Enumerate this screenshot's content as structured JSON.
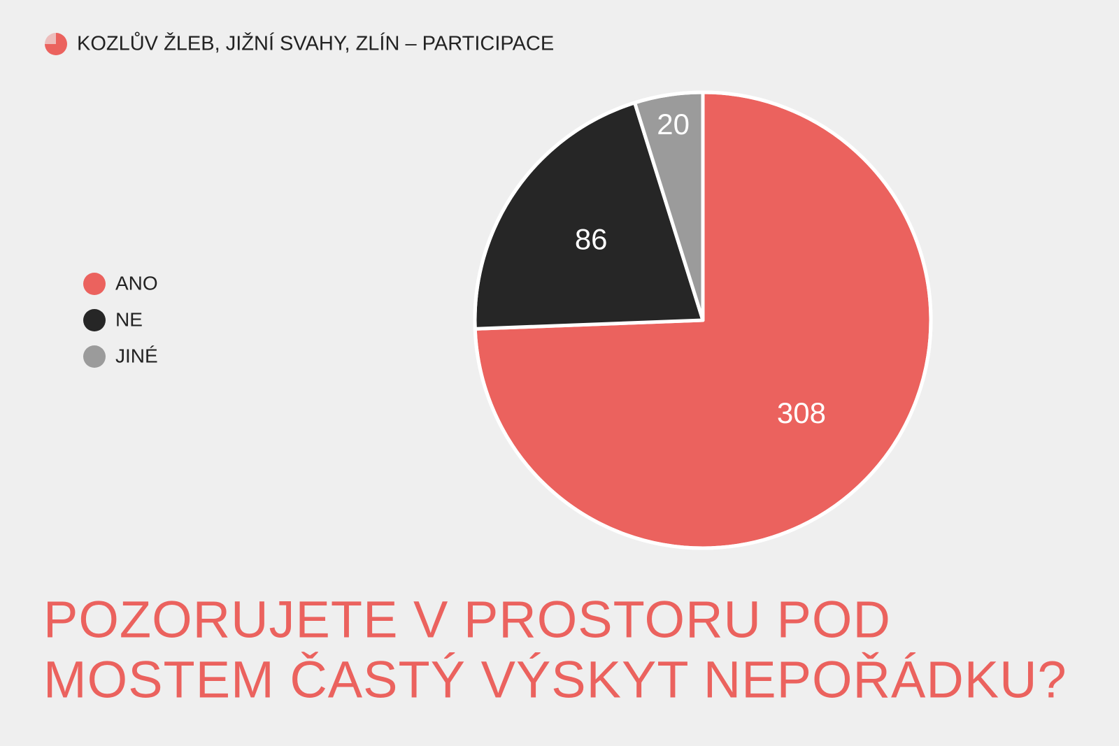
{
  "chart_data": {
    "type": "pie",
    "header": "KOZLŮV ŽLEB, JIŽNÍ SVAHY, ZLÍN – PARTICIPACE",
    "title": [
      "POZORUJETE V PROSTORU POD",
      "MOSTEM ČASTÝ VÝSKYT NEPOŘÁDKU?"
    ],
    "categories": [
      "ANO",
      "NE",
      "JINÉ"
    ],
    "values": [
      308,
      86,
      20
    ],
    "colors": [
      "#eb625e",
      "#262626",
      "#9b9b9b"
    ],
    "legend": "left"
  }
}
